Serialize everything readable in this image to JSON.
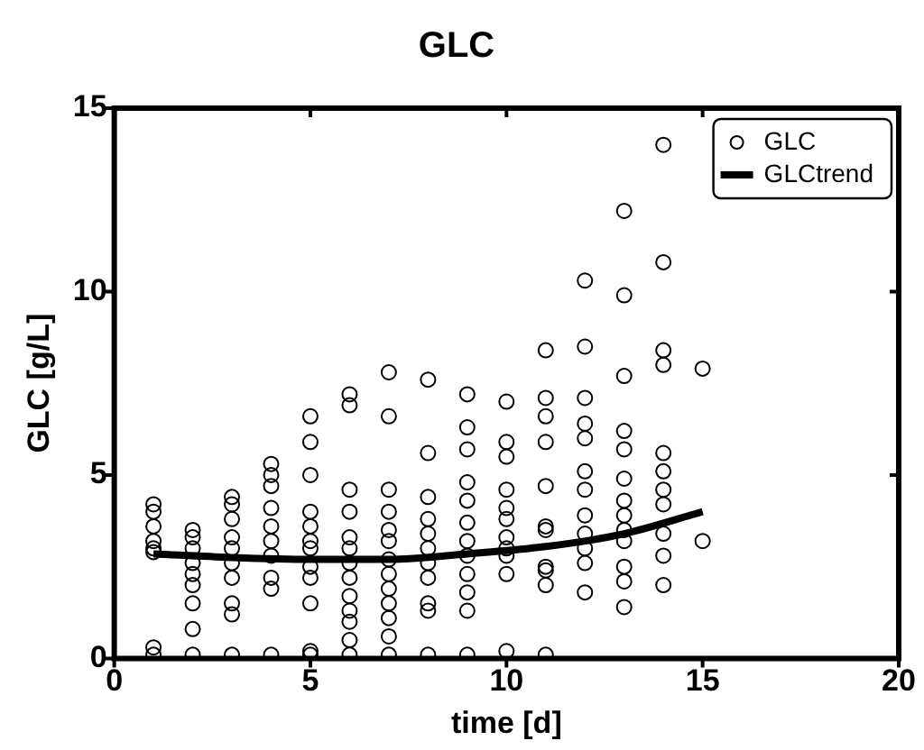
{
  "chart_data": {
    "type": "scatter",
    "title": "GLC",
    "xlabel": "time [d]",
    "ylabel": "GLC [g/L]",
    "xlim": [
      0,
      20
    ],
    "xticks": [
      0,
      5,
      10,
      15,
      20
    ],
    "ylim": [
      0,
      15
    ],
    "yticks": [
      0,
      5,
      10,
      15
    ],
    "grid": false,
    "legend": "top right",
    "marker": "circle",
    "series": [
      {
        "name": "GLC",
        "color": "#000000",
        "x": [
          1,
          1,
          1,
          1,
          1,
          1,
          1,
          1,
          2,
          2,
          2,
          2,
          2,
          2,
          2,
          2,
          2,
          3,
          3,
          3,
          3,
          3,
          3,
          3,
          3,
          3,
          3,
          4,
          4,
          4,
          4,
          4,
          4,
          4,
          4,
          4,
          4,
          5,
          5,
          5,
          5,
          5,
          5,
          5,
          5,
          5,
          5,
          5,
          5,
          6,
          6,
          6,
          6,
          6,
          6,
          6,
          6,
          6,
          6,
          6,
          6,
          6,
          7,
          7,
          7,
          7,
          7,
          7,
          7,
          7,
          7,
          7,
          7,
          7,
          7,
          8,
          8,
          8,
          8,
          8,
          8,
          8,
          8,
          8,
          8,
          8,
          9,
          9,
          9,
          9,
          9,
          9,
          9,
          9,
          9,
          9,
          9,
          9,
          10,
          10,
          10,
          10,
          10,
          10,
          10,
          10,
          10,
          10,
          10,
          11,
          11,
          11,
          11,
          11,
          11,
          11,
          11,
          11,
          11,
          11,
          12,
          12,
          12,
          12,
          12,
          12,
          12,
          12,
          12,
          12,
          12,
          12,
          13,
          13,
          13,
          13,
          13,
          13,
          13,
          13,
          13,
          13,
          13,
          13,
          13,
          14,
          14,
          14,
          14,
          14,
          14,
          14,
          14,
          14,
          14,
          14,
          15,
          15
        ],
        "values": [
          4.2,
          4.0,
          3.6,
          3.2,
          3.0,
          2.9,
          0.3,
          0.1,
          3.5,
          3.3,
          3.0,
          2.6,
          2.3,
          2.0,
          1.5,
          0.8,
          0.1,
          4.4,
          4.2,
          3.8,
          3.3,
          3.0,
          2.6,
          2.2,
          1.5,
          1.2,
          0.1,
          5.3,
          5.0,
          4.7,
          4.1,
          3.6,
          3.2,
          2.8,
          2.2,
          1.9,
          0.1,
          6.6,
          5.9,
          5.0,
          4.0,
          3.6,
          3.2,
          3.0,
          2.5,
          2.2,
          1.5,
          0.2,
          0.1,
          7.2,
          6.9,
          4.6,
          4.0,
          3.3,
          3.0,
          2.6,
          2.2,
          1.7,
          1.3,
          1.0,
          0.5,
          0.1,
          7.8,
          6.6,
          4.6,
          4.0,
          3.5,
          3.2,
          2.7,
          2.3,
          1.9,
          1.5,
          1.1,
          0.6,
          0.1,
          7.6,
          5.6,
          4.4,
          3.8,
          3.4,
          3.0,
          2.6,
          2.2,
          1.5,
          1.3,
          0.1,
          7.2,
          6.3,
          5.7,
          4.8,
          4.3,
          3.7,
          3.2,
          2.8,
          2.3,
          1.8,
          1.3,
          0.1,
          7.0,
          5.9,
          5.5,
          4.6,
          4.1,
          3.8,
          3.3,
          3.0,
          2.8,
          2.3,
          0.2,
          8.4,
          7.1,
          6.6,
          5.9,
          4.7,
          3.6,
          3.5,
          2.5,
          2.4,
          2.0,
          0.1,
          10.3,
          8.5,
          7.1,
          6.4,
          6.0,
          5.1,
          4.6,
          3.9,
          3.4,
          3.0,
          2.6,
          1.8,
          12.2,
          9.9,
          7.7,
          6.2,
          5.7,
          4.9,
          4.3,
          3.9,
          3.5,
          3.2,
          2.5,
          2.1,
          1.4,
          14.0,
          10.8,
          8.4,
          8.0,
          5.6,
          5.1,
          4.6,
          4.2,
          3.4,
          2.8,
          2.0,
          7.9,
          3.2
        ]
      },
      {
        "name": "GLCtrend",
        "color": "#000000",
        "type": "line",
        "marker": "none",
        "line_style": "solid",
        "x": [
          1,
          3,
          5,
          7,
          9,
          11,
          13,
          15
        ],
        "values": [
          2.85,
          2.75,
          2.7,
          2.7,
          2.85,
          3.05,
          3.4,
          4.0
        ]
      }
    ]
  }
}
